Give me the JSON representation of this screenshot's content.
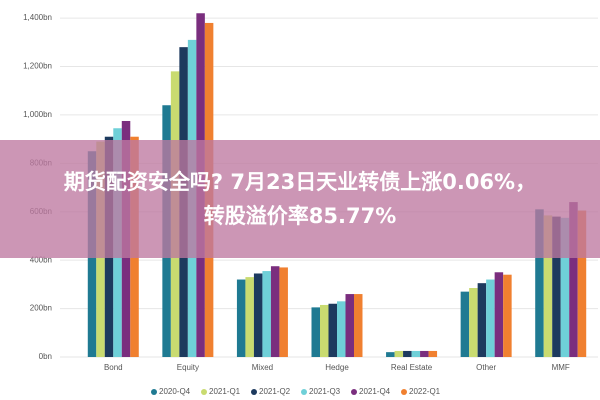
{
  "chart_data": {
    "type": "bar",
    "categories": [
      "Bond",
      "Equity",
      "Mixed",
      "Hedge",
      "Real Estate",
      "Other",
      "MMF"
    ],
    "series": [
      {
        "name": "2020-Q4",
        "color": "#1f7a92",
        "values": [
          850,
          1040,
          320,
          205,
          20,
          270,
          610
        ]
      },
      {
        "name": "2021-Q1",
        "color": "#c9db70",
        "values": [
          890,
          1180,
          330,
          215,
          25,
          285,
          585
        ]
      },
      {
        "name": "2021-Q2",
        "color": "#1d3a5e",
        "values": [
          910,
          1280,
          345,
          220,
          25,
          305,
          580
        ]
      },
      {
        "name": "2021-Q3",
        "color": "#6fd0d8",
        "values": [
          945,
          1310,
          355,
          230,
          25,
          320,
          575
        ]
      },
      {
        "name": "2021-Q4",
        "color": "#7a2e7e",
        "values": [
          975,
          1420,
          375,
          260,
          25,
          350,
          640
        ]
      },
      {
        "name": "2022-Q1",
        "color": "#f08030",
        "values": [
          910,
          1380,
          370,
          260,
          25,
          340,
          605
        ]
      }
    ],
    "ylim": [
      0,
      1450
    ],
    "yticks": [
      {
        "value": 0,
        "label": "0bn"
      },
      {
        "value": 200,
        "label": "200bn"
      },
      {
        "value": 400,
        "label": "400bn"
      },
      {
        "value": 600,
        "label": "600bn"
      },
      {
        "value": 800,
        "label": "800bn"
      },
      {
        "value": 1000,
        "label": "1,000bn"
      },
      {
        "value": 1200,
        "label": "1,200bn"
      },
      {
        "value": 1400,
        "label": "1,400bn"
      }
    ],
    "grid": true,
    "legend": "bottom"
  },
  "overlay": {
    "lines": [
      "期货配资安全吗? 7月23日天业转债上涨0.06%，",
      "转股溢价率85.77%"
    ]
  }
}
